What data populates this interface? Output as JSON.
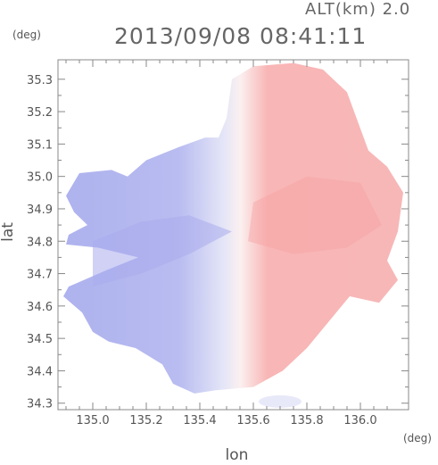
{
  "header": {
    "altitude_label": "ALT(km) 2.0",
    "timestamp": "2013/09/08 08:41:11"
  },
  "chart_data": {
    "type": "heatmap",
    "title": "2013/09/08 08:41:11",
    "subtitle": "ALT(km) 2.0",
    "xlabel": "lon",
    "ylabel": "lat",
    "x_unit": "(deg)",
    "y_unit": "(deg)",
    "xlim": [
      134.87,
      136.18
    ],
    "ylim": [
      34.28,
      35.36
    ],
    "x_ticks": [
      135.0,
      135.2,
      135.4,
      135.6,
      135.8,
      136.0
    ],
    "x_tick_labels": [
      "135.0",
      "135.2",
      "135.4",
      "135.6",
      "135.8",
      "136.0"
    ],
    "y_ticks": [
      34.3,
      34.4,
      34.5,
      34.6,
      34.7,
      34.8,
      34.9,
      35.0,
      35.1,
      35.2,
      35.3
    ],
    "y_tick_labels": [
      "34.3",
      "34.4",
      "34.5",
      "34.6",
      "34.7",
      "34.8",
      "34.9",
      "35.0",
      "35.1",
      "35.2",
      "35.3"
    ],
    "radar_center": {
      "lon": 135.52,
      "lat": 34.83
    },
    "colors": {
      "negative": "#aeb2ee",
      "neutral": "#f4f4fa",
      "positive": "#f8a8a8",
      "frame": "#888888"
    },
    "grid": false,
    "legend": "none"
  }
}
